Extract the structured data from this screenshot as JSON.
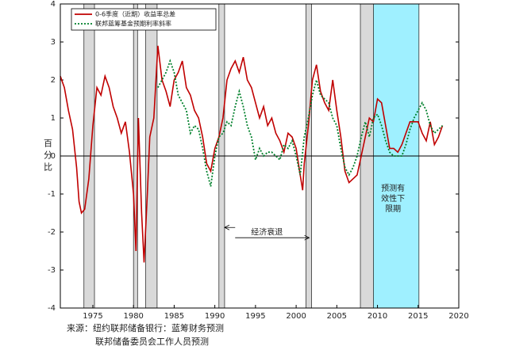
{
  "chart_data": {
    "type": "line",
    "ylabel": "百分比",
    "xlim": [
      1971,
      2020
    ],
    "ylim": [
      -4,
      4
    ],
    "xticks": [
      1975,
      1980,
      1985,
      1990,
      1995,
      2000,
      2005,
      2010,
      2015,
      2020
    ],
    "yticks": [
      -4,
      -3,
      -2,
      -1,
      0,
      1,
      2,
      3,
      4
    ],
    "recessions": [
      [
        1973.9,
        1975.2
      ],
      [
        1980.0,
        1980.5
      ],
      [
        1981.5,
        1982.9
      ],
      [
        1990.5,
        1991.2
      ],
      [
        2001.2,
        2001.9
      ],
      [
        2007.9,
        2009.5
      ]
    ],
    "recession_color": "#d9d9d9",
    "shaded_region": {
      "range": [
        2009.5,
        2015.1
      ],
      "color": "#9ff0ff",
      "label": [
        "预测有",
        "效性下",
        "限期"
      ]
    },
    "annotation": {
      "text": "经济衰退",
      "arrow_left": [
        1992.5,
        1991.2,
        -1.88
      ],
      "arrow_right": [
        1992.5,
        2001.6,
        -2.15
      ]
    },
    "source": [
      "来源：纽约联邦储备银行：蓝筹财务预测",
      "联邦储备委员会工作人员预测"
    ],
    "series": [
      {
        "name": "0-6季度（近期）收益率总差",
        "color": "#c00000",
        "style": "solid",
        "x": [
          1971.0,
          1971.5,
          1972.0,
          1972.5,
          1973.0,
          1973.3,
          1973.6,
          1974.0,
          1974.5,
          1975.0,
          1975.5,
          1976.0,
          1976.5,
          1977.0,
          1977.5,
          1978.0,
          1978.5,
          1979.0,
          1979.5,
          1980.0,
          1980.3,
          1980.6,
          1981.0,
          1981.3,
          1981.7,
          1982.0,
          1982.5,
          1983.0,
          1983.5,
          1984.0,
          1984.5,
          1985.0,
          1985.5,
          1986.0,
          1986.5,
          1987.0,
          1987.5,
          1988.0,
          1988.5,
          1989.0,
          1989.5,
          1990.0,
          1990.5,
          1991.0,
          1991.5,
          1992.0,
          1992.5,
          1993.0,
          1993.5,
          1994.0,
          1994.5,
          1995.0,
          1995.5,
          1996.0,
          1996.5,
          1997.0,
          1997.5,
          1998.0,
          1998.5,
          1999.0,
          1999.5,
          2000.0,
          2000.5,
          2000.8,
          2001.0,
          2001.5,
          2002.0,
          2002.5,
          2003.0,
          2003.5,
          2004.0,
          2004.5,
          2005.0,
          2005.5,
          2006.0,
          2006.5,
          2007.0,
          2007.5,
          2008.0,
          2008.5,
          2009.0,
          2009.5,
          2010.0,
          2010.5,
          2011.0,
          2011.5,
          2012.0,
          2012.5,
          2013.0,
          2013.5,
          2014.0,
          2014.5,
          2015.0,
          2015.5,
          2016.0,
          2016.5,
          2017.0,
          2017.5,
          2018.0
        ],
        "values": [
          2.1,
          1.8,
          1.2,
          0.7,
          -0.3,
          -1.2,
          -1.5,
          -1.4,
          -0.6,
          0.8,
          1.8,
          1.6,
          2.1,
          1.8,
          1.3,
          1.0,
          0.6,
          0.9,
          0.1,
          -1.0,
          -2.5,
          1.0,
          -1.5,
          -2.8,
          -1.0,
          0.5,
          1.0,
          2.9,
          2.0,
          1.7,
          1.3,
          2.0,
          2.2,
          2.5,
          1.8,
          1.6,
          1.2,
          1.0,
          0.5,
          -0.2,
          -0.4,
          0.2,
          0.5,
          1.0,
          2.0,
          2.3,
          2.5,
          2.2,
          2.6,
          2.0,
          1.8,
          1.4,
          1.0,
          1.3,
          0.8,
          1.0,
          0.6,
          0.4,
          0.1,
          0.6,
          0.5,
          0.2,
          -0.5,
          -0.9,
          -0.2,
          0.8,
          2.0,
          2.4,
          1.7,
          1.4,
          1.2,
          2.0,
          1.2,
          0.5,
          -0.4,
          -0.7,
          -0.6,
          -0.5,
          0.0,
          0.5,
          1.0,
          0.9,
          1.5,
          1.4,
          0.8,
          0.2,
          0.2,
          0.1,
          0.3,
          0.6,
          0.9,
          0.9,
          0.9,
          0.6,
          0.4,
          0.9,
          0.3,
          0.5,
          0.8
        ]
      },
      {
        "name": "联邦蓝筹基金预期利率斜率",
        "color": "#00802b",
        "style": "dotted",
        "x": [
          1983.0,
          1983.5,
          1984.0,
          1984.5,
          1985.0,
          1985.5,
          1986.0,
          1986.5,
          1987.0,
          1987.5,
          1988.0,
          1988.5,
          1989.0,
          1989.5,
          1990.0,
          1990.5,
          1991.0,
          1991.5,
          1992.0,
          1992.5,
          1993.0,
          1993.5,
          1994.0,
          1994.5,
          1995.0,
          1995.5,
          1996.0,
          1996.5,
          1997.0,
          1997.5,
          1998.0,
          1998.5,
          1999.0,
          1999.5,
          2000.0,
          2000.5,
          2001.0,
          2001.5,
          2002.0,
          2002.5,
          2003.0,
          2003.5,
          2004.0,
          2004.5,
          2005.0,
          2005.5,
          2006.0,
          2006.5,
          2007.0,
          2007.5,
          2008.0,
          2008.5,
          2009.0,
          2009.5,
          2010.0,
          2010.5,
          2011.0,
          2011.5,
          2012.0,
          2012.5,
          2013.0,
          2013.5,
          2014.0,
          2014.5,
          2015.0,
          2015.5,
          2016.0,
          2016.5,
          2017.0,
          2017.5,
          2018.0
        ],
        "values": [
          1.8,
          2.0,
          2.2,
          2.5,
          2.2,
          1.6,
          1.4,
          1.2,
          0.6,
          0.8,
          0.7,
          0.2,
          -0.4,
          -0.8,
          0.0,
          0.5,
          0.6,
          0.9,
          0.8,
          1.3,
          1.7,
          1.3,
          0.8,
          0.5,
          -0.1,
          0.2,
          0.0,
          0.1,
          0.1,
          0.0,
          -0.1,
          0.3,
          0.2,
          0.4,
          0.0,
          -0.5,
          0.5,
          1.0,
          1.6,
          2.0,
          1.6,
          1.5,
          1.4,
          1.0,
          0.8,
          0.2,
          -0.3,
          -0.5,
          -0.3,
          0.0,
          0.5,
          0.9,
          0.5,
          1.0,
          1.1,
          0.8,
          0.4,
          0.1,
          0.0,
          0.0,
          0.0,
          0.3,
          0.7,
          1.0,
          1.2,
          1.4,
          1.2,
          0.8,
          0.6,
          0.7,
          0.8
        ]
      }
    ]
  }
}
